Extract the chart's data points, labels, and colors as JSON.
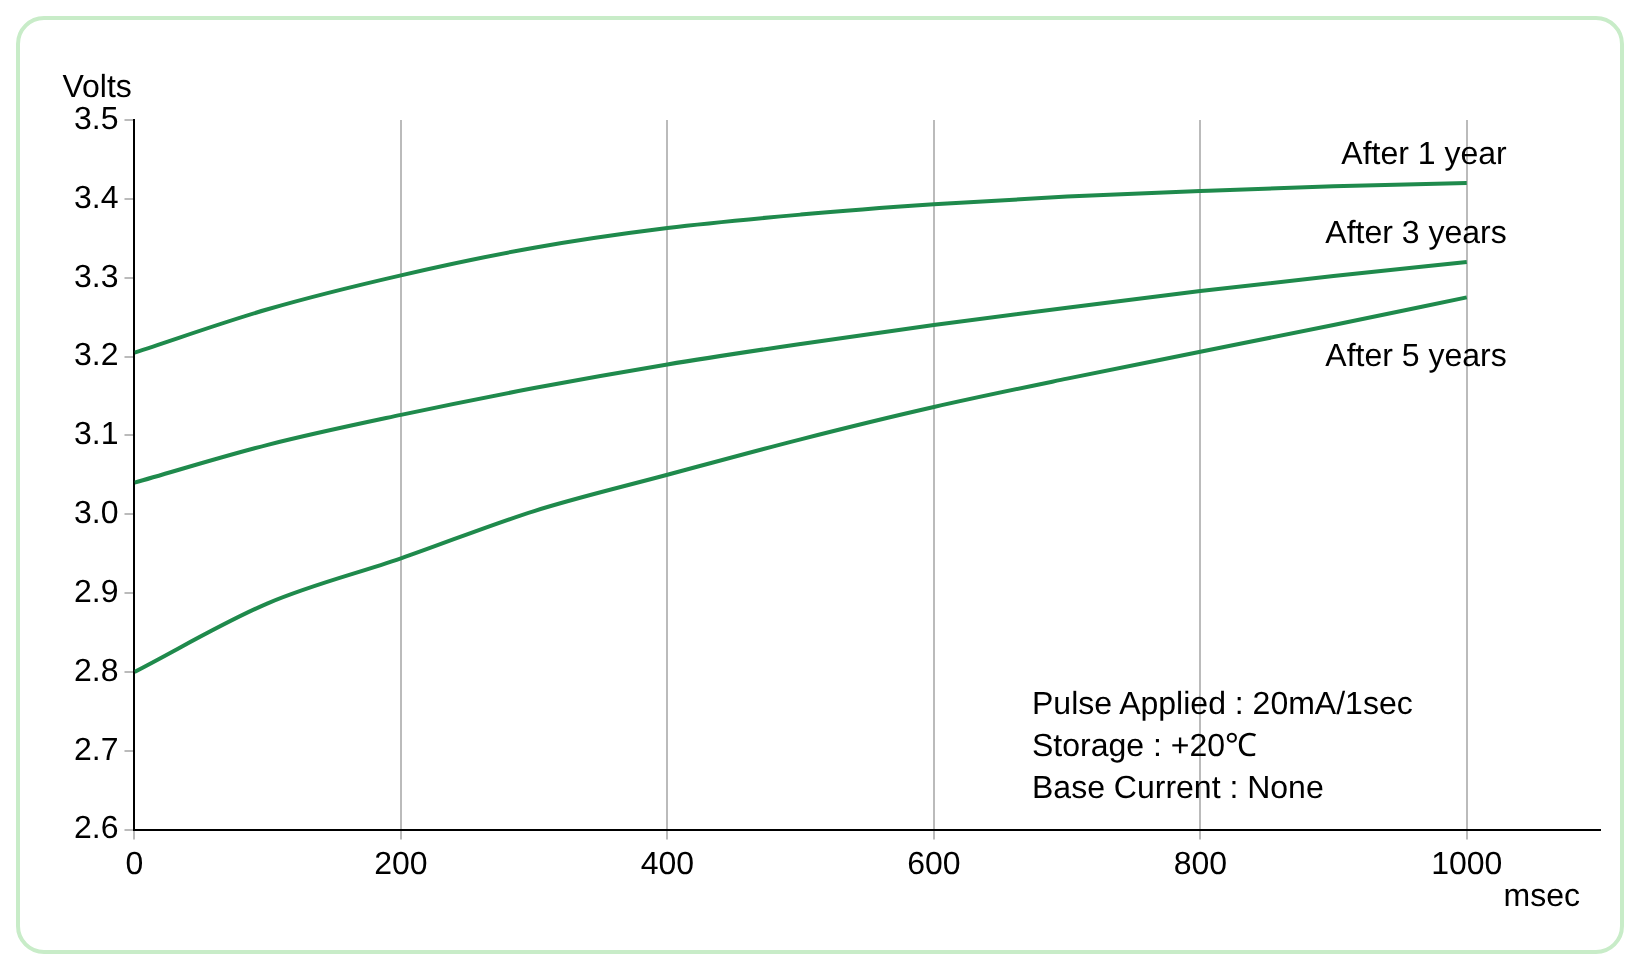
{
  "chart_data": {
    "type": "line",
    "ylabel": "Volts",
    "xlabel": "msec",
    "series": [
      {
        "name": "After 1 year",
        "color": "#1f8a4c",
        "x": [
          0,
          100,
          200,
          300,
          400,
          500,
          600,
          700,
          800,
          900,
          1000
        ],
        "values": [
          3.205,
          3.26,
          3.303,
          3.338,
          3.363,
          3.38,
          3.393,
          3.403,
          3.41,
          3.416,
          3.42
        ]
      },
      {
        "name": "After 3 years",
        "color": "#1f8a4c",
        "x": [
          0,
          100,
          200,
          300,
          400,
          500,
          600,
          700,
          800,
          900,
          1000
        ],
        "values": [
          3.04,
          3.088,
          3.126,
          3.16,
          3.19,
          3.216,
          3.24,
          3.262,
          3.283,
          3.302,
          3.32
        ]
      },
      {
        "name": "After 5 years",
        "color": "#1f8a4c",
        "x": [
          0,
          100,
          200,
          300,
          400,
          500,
          600,
          700,
          800,
          900,
          1000
        ],
        "values": [
          2.8,
          2.887,
          2.944,
          3.004,
          3.05,
          3.095,
          3.136,
          3.172,
          3.206,
          3.24,
          3.275
        ]
      }
    ],
    "xlim": [
      0,
      1100
    ],
    "xticks": [
      0,
      200,
      400,
      600,
      800,
      1000
    ],
    "ylim": [
      2.6,
      3.5
    ],
    "yticks": [
      2.6,
      2.7,
      2.8,
      2.9,
      {
        "value": 3,
        "label": "3.0"
      },
      3.1,
      3.2,
      3.3,
      3.4,
      3.5
    ],
    "grid": "x",
    "legend": false,
    "marker": "none",
    "line_style": "solid",
    "annotations": [
      "Pulse Applied : 20mA/1sec",
      "Storage : +20℃",
      "Base Current : None"
    ]
  }
}
